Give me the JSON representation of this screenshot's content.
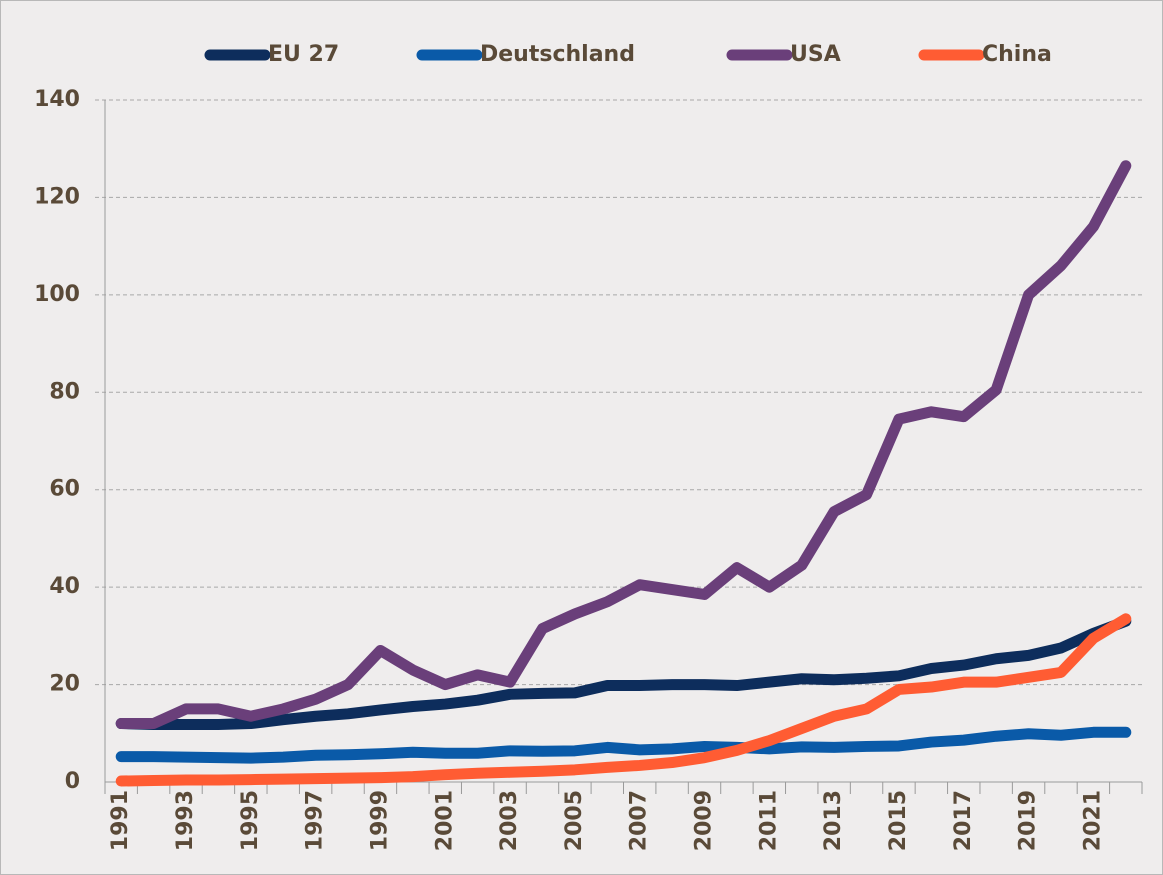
{
  "chart_data": {
    "type": "line",
    "categories": [
      "1991",
      null,
      "1993",
      null,
      "1995",
      null,
      "1997",
      null,
      "1999",
      null,
      "2001",
      null,
      "2003",
      null,
      "2005",
      null,
      "2007",
      null,
      "2009",
      null,
      "2011",
      null,
      "2013",
      null,
      "2015",
      null,
      "2017",
      null,
      "2019",
      null,
      "2021",
      null
    ],
    "series": [
      {
        "name": "EU 27",
        "color": "#0d2d5c",
        "values": [
          12,
          11.8,
          11.8,
          11.8,
          12,
          12.8,
          13.5,
          14,
          14.8,
          15.5,
          16,
          16.8,
          18,
          18.2,
          18.3,
          19.8,
          19.8,
          20,
          20,
          19.8,
          20.5,
          21.2,
          21,
          21.3,
          21.8,
          23.3,
          24,
          25.3,
          26,
          27.5,
          30.5,
          33
        ]
      },
      {
        "name": "Deutschland",
        "color": "#0a5aa8",
        "values": [
          5.2,
          5.2,
          5.1,
          5,
          4.9,
          5.1,
          5.5,
          5.6,
          5.8,
          6.1,
          5.9,
          5.9,
          6.4,
          6.3,
          6.4,
          7.1,
          6.6,
          6.8,
          7.3,
          7.1,
          6.8,
          7.2,
          7.1,
          7.3,
          7.4,
          8.2,
          8.6,
          9.4,
          9.9,
          9.6,
          10.2,
          10.2
        ]
      },
      {
        "name": "USA",
        "color": "#6a3f7a",
        "values": [
          12,
          12,
          15,
          15,
          13.5,
          15,
          17,
          20,
          27,
          23,
          20,
          22,
          20.5,
          31.5,
          34.5,
          37,
          40.5,
          39.5,
          38.5,
          44,
          40,
          44.5,
          55.5,
          59,
          74.5,
          76,
          75,
          80.5,
          100,
          106,
          114,
          126.5
        ]
      },
      {
        "name": "China",
        "color": "#ff5c33",
        "values": [
          0.2,
          0.3,
          0.4,
          0.4,
          0.5,
          0.6,
          0.7,
          0.8,
          0.9,
          1.1,
          1.5,
          1.8,
          2,
          2.2,
          2.5,
          3,
          3.4,
          4,
          5,
          6.5,
          8.5,
          11,
          13.5,
          15,
          19,
          19.5,
          20.5,
          20.5,
          21.5,
          22.5,
          29.5,
          33.5
        ]
      }
    ],
    "ylim": [
      0,
      140
    ],
    "yticks": [
      0,
      20,
      40,
      60,
      80,
      100,
      120,
      140
    ],
    "grid": true,
    "legend": "top"
  }
}
